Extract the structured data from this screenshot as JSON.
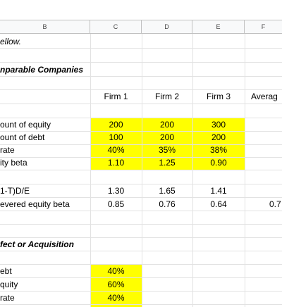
{
  "columns": [
    "B",
    "C",
    "D",
    "E",
    "F"
  ],
  "note": "ellow.",
  "section1_title": "nparable Companies",
  "firm_headers": [
    "Firm 1",
    "Firm 2",
    "Firm 3",
    "Averag"
  ],
  "rows": {
    "amount_equity": {
      "label": "ount of equity",
      "values": [
        "200",
        "200",
        "300"
      ]
    },
    "amount_debt": {
      "label": "ount of debt",
      "values": [
        "100",
        "200",
        "200"
      ]
    },
    "tax_rate": {
      "label": "rate",
      "values": [
        "40%",
        "35%",
        "38%"
      ]
    },
    "equity_beta": {
      "label": "ity beta",
      "values": [
        "1.10",
        "1.25",
        "0.90"
      ]
    },
    "one_t_de": {
      "label": "1-T)D/E",
      "values": [
        "1.30",
        "1.65",
        "1.41"
      ]
    },
    "unlevered_beta": {
      "label": "evered equity beta",
      "values": [
        "0.85",
        "0.76",
        "0.64"
      ],
      "average": "0.7"
    }
  },
  "section2_title": "fect or Acquisition",
  "section2_rows": [
    {
      "label": "ebt",
      "value": "40%"
    },
    {
      "label": "quity",
      "value": "60%"
    },
    {
      "label": "rate",
      "value": "40%"
    }
  ],
  "colors": {
    "highlight": "#ffff00",
    "header_bg": "#f8f9fa",
    "grid": "#e2e2e2"
  }
}
